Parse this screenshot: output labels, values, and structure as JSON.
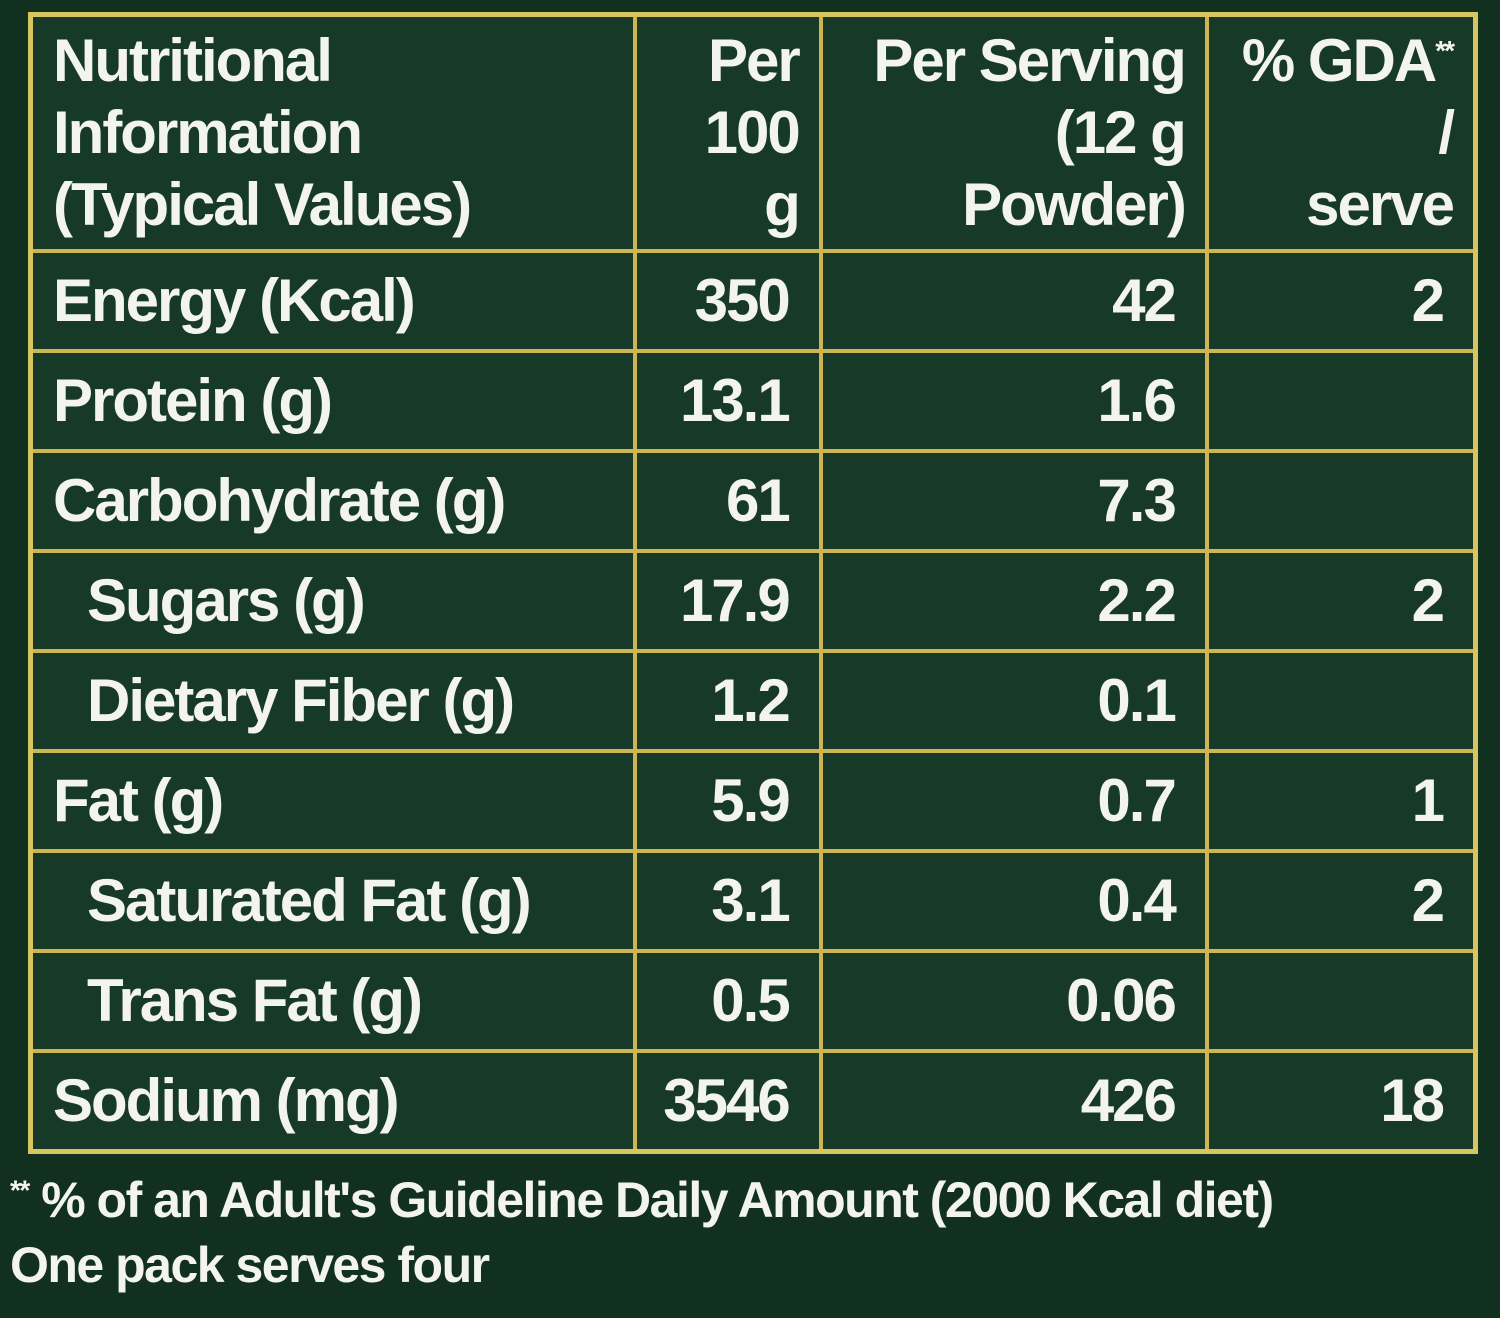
{
  "table": {
    "headers": {
      "name_line1": "Nutritional Information",
      "name_line2": "(Typical Values)",
      "per100_line1": "Per",
      "per100_line2": "100 g",
      "serving_line1": "Per Serving",
      "serving_line2": "(12 g Powder)",
      "gda_line1": "% GDA",
      "gda_mark": "**",
      "gda_slash": " /",
      "gda_line2": "serve"
    },
    "rows": [
      {
        "name": "Energy (Kcal)",
        "per100": "350",
        "serving": "42",
        "gda": "2",
        "indent": false
      },
      {
        "name": "Protein (g)",
        "per100": "13.1",
        "serving": "1.6",
        "gda": "",
        "indent": false
      },
      {
        "name": "Carbohydrate (g)",
        "per100": "61",
        "serving": "7.3",
        "gda": "",
        "indent": false
      },
      {
        "name": "Sugars (g)",
        "per100": "17.9",
        "serving": "2.2",
        "gda": "2",
        "indent": true
      },
      {
        "name": "Dietary Fiber (g)",
        "per100": "1.2",
        "serving": "0.1",
        "gda": "",
        "indent": true
      },
      {
        "name": "Fat (g)",
        "per100": "5.9",
        "serving": "0.7",
        "gda": "1",
        "indent": false
      },
      {
        "name": "Saturated Fat (g)",
        "per100": "3.1",
        "serving": "0.4",
        "gda": "2",
        "indent": true
      },
      {
        "name": "Trans Fat (g)",
        "per100": "0.5",
        "serving": "0.06",
        "gda": "",
        "indent": true
      },
      {
        "name": "Sodium (mg)",
        "per100": "3546",
        "serving": "426",
        "gda": "18",
        "indent": false
      }
    ]
  },
  "footer": {
    "line1_mark": "**",
    "line1": " % of an Adult's Guideline Daily Amount (2000 Kcal diet)",
    "line2": "One pack serves four"
  },
  "colors": {
    "background": "#173a28",
    "border": "#cdb553",
    "text": "#f4f4ee"
  }
}
